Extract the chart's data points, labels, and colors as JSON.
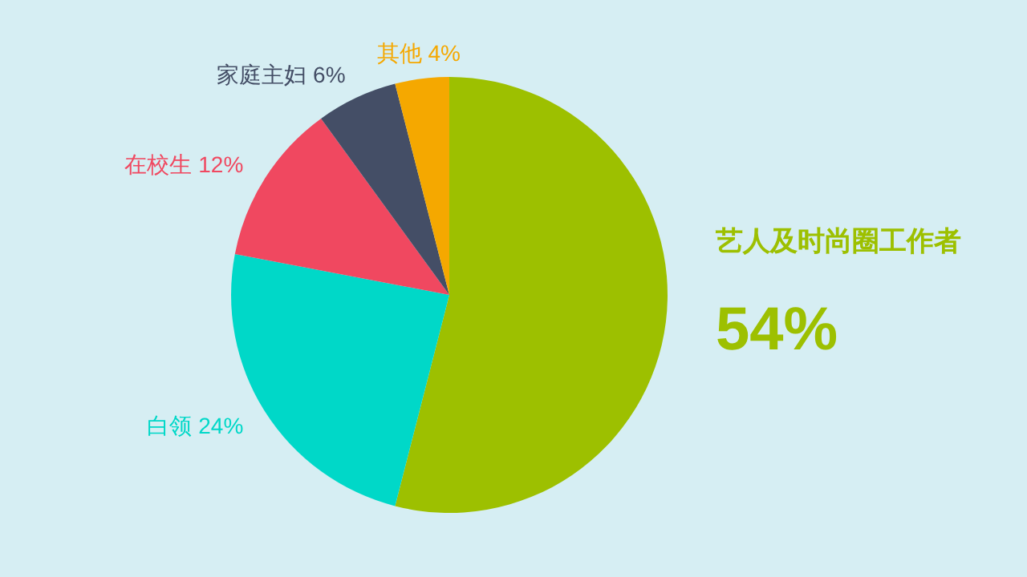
{
  "chart_data": {
    "type": "pie",
    "categories": [
      "艺人及时尚圈工作者",
      "白领",
      "在校生",
      "家庭主妇",
      "其他"
    ],
    "values": [
      54,
      24,
      12,
      6,
      4
    ],
    "value_labels": [
      "54%",
      "24%",
      "12%",
      "6%",
      "4%"
    ],
    "colors": [
      "#9dc000",
      "#00d8c8",
      "#f04860",
      "#444e66",
      "#f5a800"
    ]
  }
}
